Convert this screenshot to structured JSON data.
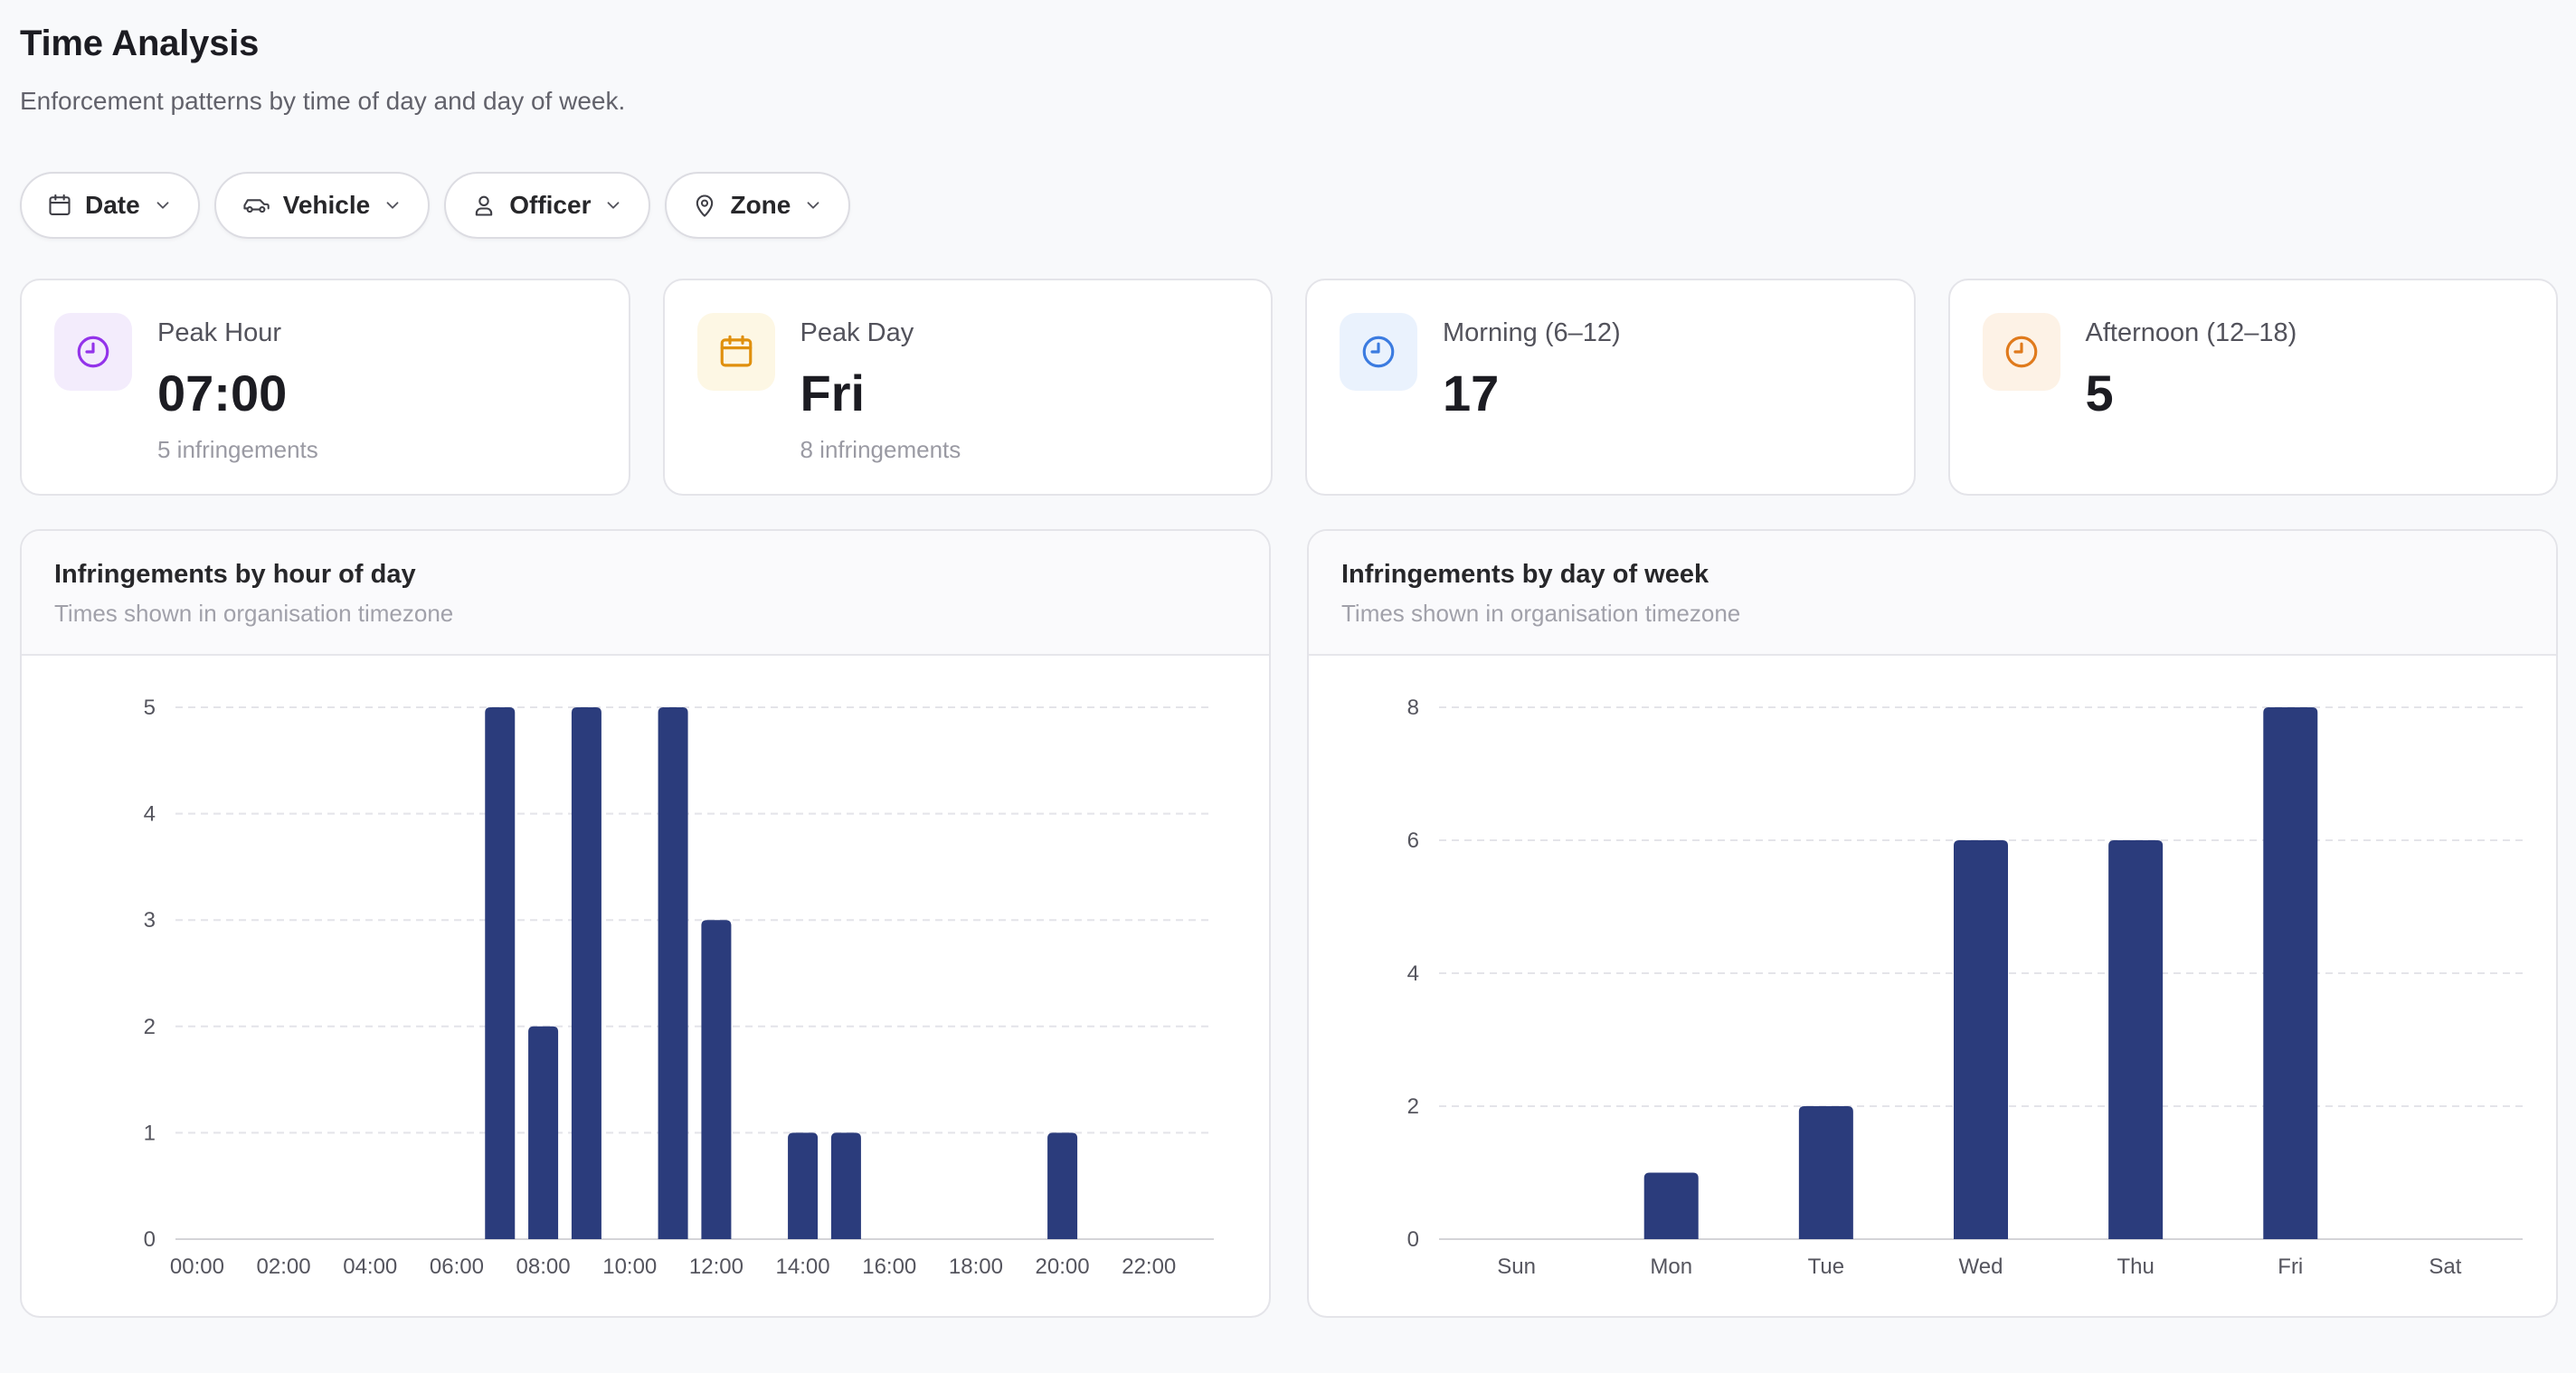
{
  "page": {
    "title": "Time Analysis",
    "subtitle": "Enforcement patterns by time of day and day of week."
  },
  "filters": [
    {
      "label": "Date",
      "icon": "calendar-icon"
    },
    {
      "label": "Vehicle",
      "icon": "car-icon"
    },
    {
      "label": "Officer",
      "icon": "user-icon"
    },
    {
      "label": "Zone",
      "icon": "map-pin-icon"
    }
  ],
  "kpis": [
    {
      "label": "Peak Hour",
      "value": "07:00",
      "sub": "5 infringements",
      "icon": "clock-icon",
      "color": "#9333ea",
      "bg": "#f3ecfc"
    },
    {
      "label": "Peak Day",
      "value": "Fri",
      "sub": "8 infringements",
      "icon": "calendar-icon",
      "color": "#e0900d",
      "bg": "#fdf7e4"
    },
    {
      "label": "Morning (6–12)",
      "value": "17",
      "sub": "",
      "icon": "clock-icon",
      "color": "#3b7be0",
      "bg": "#eaf2fd"
    },
    {
      "label": "Afternoon (12–18)",
      "value": "5",
      "sub": "",
      "icon": "clock-icon",
      "color": "#e07a1c",
      "bg": "#fdf2e6"
    }
  ],
  "charts": {
    "hourly": {
      "title": "Infringements by hour of day",
      "subtitle": "Times shown in organisation timezone"
    },
    "weekly": {
      "title": "Infringements by day of week",
      "subtitle": "Times shown in organisation timezone"
    }
  },
  "chart_data": [
    {
      "type": "bar",
      "title": "Infringements by hour of day",
      "categories": [
        "00:00",
        "01:00",
        "02:00",
        "03:00",
        "04:00",
        "05:00",
        "06:00",
        "07:00",
        "08:00",
        "09:00",
        "10:00",
        "11:00",
        "12:00",
        "13:00",
        "14:00",
        "15:00",
        "16:00",
        "17:00",
        "18:00",
        "19:00",
        "20:00",
        "21:00",
        "22:00",
        "23:00"
      ],
      "tick_labels": [
        "00:00",
        "02:00",
        "04:00",
        "06:00",
        "08:00",
        "10:00",
        "12:00",
        "14:00",
        "16:00",
        "18:00",
        "20:00",
        "22:00"
      ],
      "values": [
        0,
        0,
        0,
        0,
        0,
        0,
        0,
        5,
        2,
        5,
        0,
        5,
        3,
        0,
        1,
        1,
        0,
        0,
        0,
        0,
        1,
        0,
        0,
        0
      ],
      "ylim": [
        0,
        5
      ],
      "yticks": [
        0,
        1,
        2,
        3,
        4,
        5
      ],
      "color": "#2b3c7c",
      "grid": true
    },
    {
      "type": "bar",
      "title": "Infringements by day of week",
      "categories": [
        "Sun",
        "Mon",
        "Tue",
        "Wed",
        "Thu",
        "Fri",
        "Sat"
      ],
      "values": [
        0,
        1,
        2,
        6,
        6,
        8,
        0
      ],
      "ylim": [
        0,
        8
      ],
      "yticks": [
        0,
        2,
        4,
        6,
        8
      ],
      "color": "#2b3c7c",
      "grid": true
    }
  ]
}
